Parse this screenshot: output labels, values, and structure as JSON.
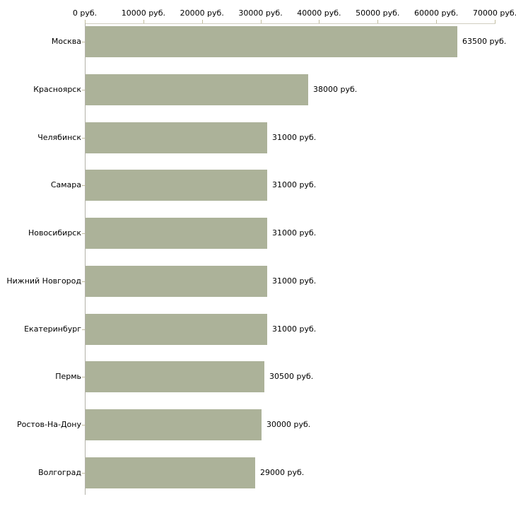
{
  "chart_data": {
    "type": "bar",
    "orientation": "horizontal",
    "title": "",
    "xlabel": "",
    "ylabel": "",
    "unit": "руб.",
    "categories": [
      "Москва",
      "Красноярск",
      "Челябинск",
      "Самара",
      "Новосибирск",
      "Нижний Новгород",
      "Екатеринбург",
      "Пермь",
      "Ростов-На-Дону",
      "Волгоград"
    ],
    "values": [
      63500,
      38000,
      31000,
      31000,
      31000,
      31000,
      31000,
      30500,
      30000,
      29000
    ],
    "value_labels": [
      "63500 руб.",
      "38000 руб.",
      "31000 руб.",
      "31000 руб.",
      "31000 руб.",
      "31000 руб.",
      "31000 руб.",
      "30500 руб.",
      "30000 руб.",
      "29000 руб."
    ],
    "x_tick_values": [
      0,
      10000,
      20000,
      30000,
      40000,
      50000,
      60000,
      70000
    ],
    "x_tick_labels": [
      "0 руб.",
      "10000 руб.",
      "20000 руб.",
      "30000 руб.",
      "40000 руб.",
      "50000 руб.",
      "60000 руб.",
      "70000 руб."
    ],
    "xlim": [
      0,
      70000
    ],
    "grid": false,
    "legend": false,
    "axis_position": "top",
    "colors": {
      "bar_fill": "#acb299",
      "x_axis_line": "#d0cec0",
      "x_tick": "#c2bd9e",
      "y_axis_line": "#b3b2a9",
      "category_tick": "#c2bd9e",
      "text": "#000000",
      "background": "#ffffff"
    }
  }
}
